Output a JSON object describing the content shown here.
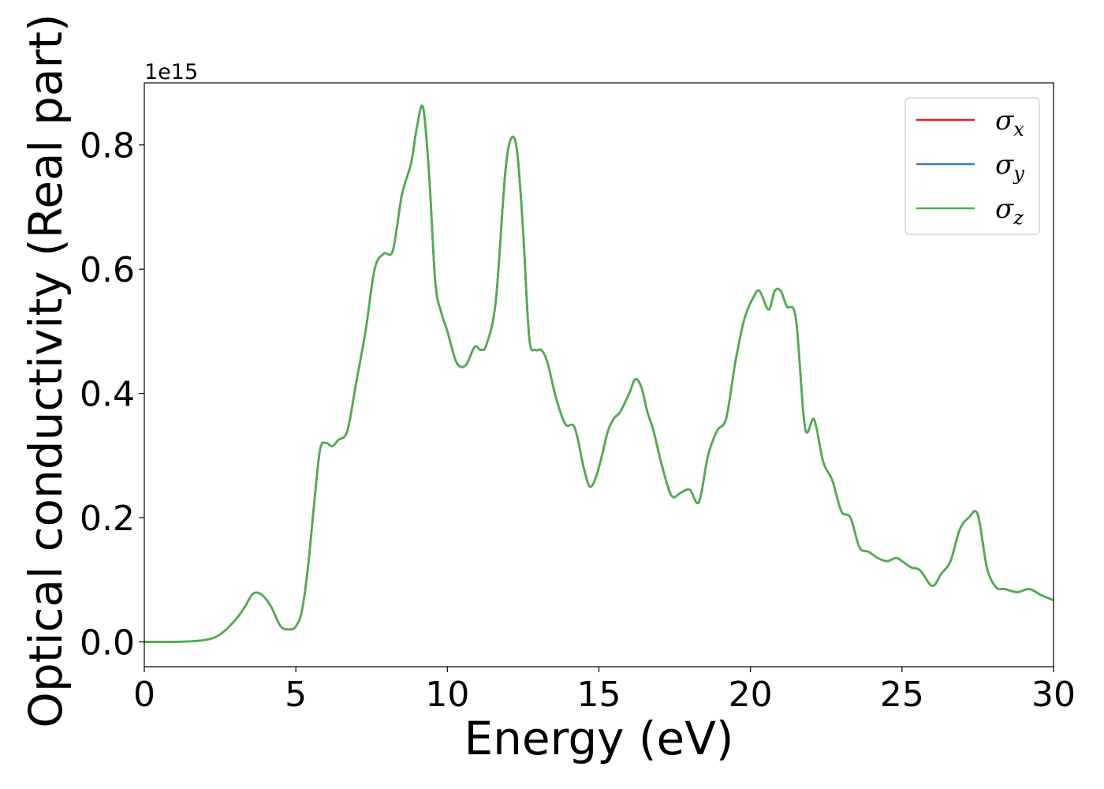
{
  "chart_data": {
    "type": "line",
    "title": "",
    "xlabel": "Energy (eV)",
    "ylabel": "Optical conductivity (Real part)",
    "y_offset_label": "1e15",
    "xlim": [
      0,
      30
    ],
    "ylim": [
      -0.04,
      0.9
    ],
    "xticks": [
      0,
      5,
      10,
      15,
      20,
      25,
      30
    ],
    "xtick_labels": [
      "0",
      "5",
      "10",
      "15",
      "20",
      "25",
      "30"
    ],
    "yticks": [
      0.0,
      0.2,
      0.4,
      0.6,
      0.8
    ],
    "ytick_labels": [
      "0.0",
      "0.2",
      "0.4",
      "0.6",
      "0.8"
    ],
    "grid": false,
    "legend_position": "top-right",
    "colors": {
      "sigma_x": "#e41a1c",
      "sigma_y": "#377eb8",
      "sigma_z": "#4daf4a"
    },
    "series": [
      {
        "name": "σx",
        "name_base": "σ",
        "name_sub": "x",
        "color": "#e41a1c"
      },
      {
        "name": "σy",
        "name_base": "σ",
        "name_sub": "y",
        "color": "#377eb8"
      },
      {
        "name": "σz",
        "name_base": "σ",
        "name_sub": "z",
        "color": "#4daf4a"
      }
    ],
    "x": [
      0,
      1,
      2,
      2.5,
      3,
      3.3,
      3.6,
      3.9,
      4.2,
      4.5,
      4.8,
      5.0,
      5.2,
      5.4,
      5.6,
      5.8,
      6.0,
      6.2,
      6.4,
      6.7,
      7.0,
      7.3,
      7.6,
      7.9,
      8.2,
      8.5,
      8.8,
      9.0,
      9.2,
      9.4,
      9.6,
      9.8,
      10.0,
      10.3,
      10.6,
      10.9,
      11.1,
      11.3,
      11.6,
      11.9,
      12.1,
      12.3,
      12.5,
      12.7,
      12.9,
      13.1,
      13.3,
      13.6,
      13.9,
      14.2,
      14.5,
      14.7,
      14.9,
      15.1,
      15.3,
      15.5,
      15.7,
      16.0,
      16.2,
      16.4,
      16.6,
      16.8,
      17.1,
      17.4,
      17.7,
      18.0,
      18.3,
      18.6,
      18.9,
      19.2,
      19.5,
      19.8,
      20.1,
      20.3,
      20.6,
      20.8,
      21.0,
      21.2,
      21.5,
      21.8,
      22.1,
      22.4,
      22.7,
      23.0,
      23.3,
      23.6,
      23.9,
      24.2,
      24.5,
      24.8,
      25.0,
      25.3,
      25.6,
      26.0,
      26.3,
      26.6,
      26.9,
      27.2,
      27.5,
      27.8,
      28.1,
      28.4,
      28.8,
      29.2,
      29.6,
      30.0
    ],
    "y": [
      0.0,
      0.0,
      0.003,
      0.012,
      0.035,
      0.055,
      0.078,
      0.075,
      0.055,
      0.025,
      0.02,
      0.025,
      0.05,
      0.12,
      0.22,
      0.31,
      0.32,
      0.315,
      0.325,
      0.34,
      0.42,
      0.5,
      0.6,
      0.625,
      0.63,
      0.72,
      0.77,
      0.83,
      0.86,
      0.75,
      0.58,
      0.53,
      0.5,
      0.45,
      0.445,
      0.475,
      0.47,
      0.48,
      0.55,
      0.75,
      0.81,
      0.79,
      0.66,
      0.49,
      0.47,
      0.47,
      0.45,
      0.39,
      0.35,
      0.345,
      0.28,
      0.25,
      0.265,
      0.3,
      0.34,
      0.36,
      0.37,
      0.4,
      0.423,
      0.41,
      0.37,
      0.34,
      0.28,
      0.235,
      0.24,
      0.245,
      0.225,
      0.3,
      0.34,
      0.36,
      0.45,
      0.52,
      0.555,
      0.565,
      0.535,
      0.565,
      0.565,
      0.54,
      0.52,
      0.345,
      0.358,
      0.29,
      0.26,
      0.21,
      0.2,
      0.152,
      0.145,
      0.135,
      0.13,
      0.135,
      0.13,
      0.12,
      0.115,
      0.09,
      0.11,
      0.13,
      0.18,
      0.2,
      0.205,
      0.12,
      0.088,
      0.085,
      0.08,
      0.085,
      0.075,
      0.067
    ],
    "note_series_identical": true
  }
}
